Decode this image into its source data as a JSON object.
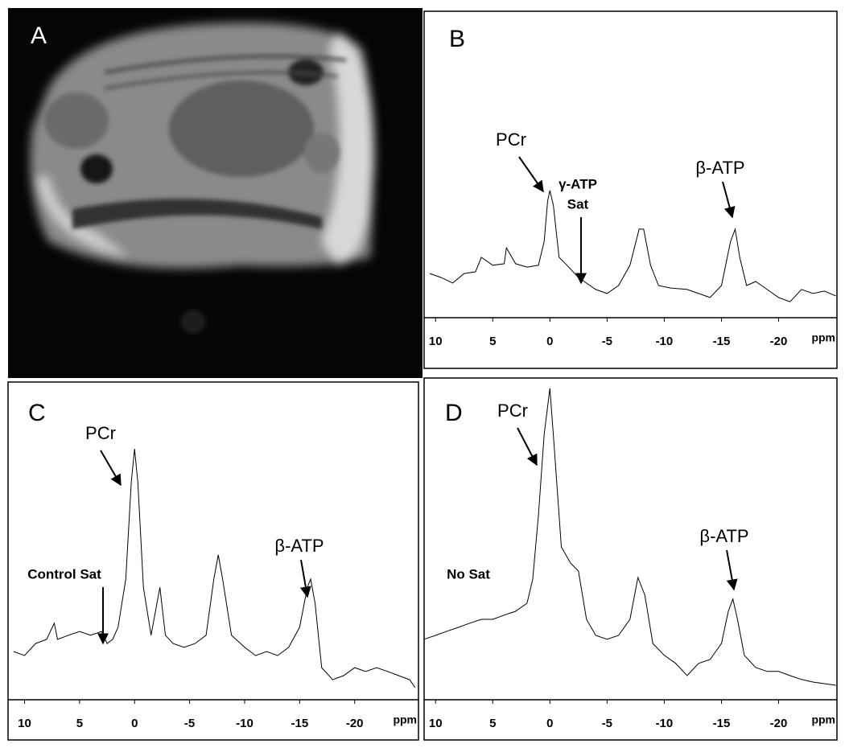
{
  "image_panel": {
    "label": "A"
  },
  "chart_data": [
    {
      "type": "line",
      "panel": "B",
      "color": "#000000",
      "x": [
        10.5,
        9.5,
        8.5,
        7.5,
        6.5,
        6,
        5,
        4,
        3.8,
        3,
        2,
        1,
        0.5,
        0.2,
        0,
        -0.3,
        -0.8,
        -1.5,
        -2.5,
        -3,
        -4,
        -5,
        -6,
        -7,
        -7.8,
        -8.2,
        -8.8,
        -9.5,
        -10.5,
        -12,
        -13,
        -14,
        -15,
        -15.8,
        -16.2,
        -16.6,
        -17.2,
        -18,
        -19,
        -20,
        -21,
        -22,
        -23,
        -24,
        -25
      ],
      "values": [
        14.4,
        13.1,
        11.3,
        14.4,
        15.0,
        19.7,
        17.1,
        17.6,
        22.8,
        17.6,
        16.5,
        17.1,
        24.9,
        38.1,
        41.5,
        36.7,
        19.7,
        17.1,
        13.1,
        11.8,
        9.2,
        7.9,
        10.5,
        17.1,
        28.9,
        28.9,
        17.1,
        10.5,
        9.7,
        9.2,
        7.9,
        6.6,
        10.5,
        24.9,
        28.9,
        19.7,
        10.5,
        11.8,
        9.2,
        6.6,
        5.2,
        9.2,
        7.9,
        8.7,
        7.1
      ],
      "xlim": [
        11,
        -25.1
      ],
      "ylim": [
        0,
        100
      ],
      "xticks": [
        10,
        5,
        0,
        -5,
        -10,
        -15,
        -20
      ],
      "xlabel": "ppm",
      "annotations": [
        "PCr",
        "γ-ATP",
        "Sat",
        "β-ATP"
      ]
    },
    {
      "type": "line",
      "panel": "C",
      "color": "#000000",
      "x": [
        11,
        10,
        9,
        8,
        7.3,
        7,
        6,
        5,
        4,
        3,
        2.5,
        2,
        1.5,
        0.8,
        0.3,
        0,
        -0.3,
        -0.8,
        -1.5,
        -2.3,
        -2.8,
        -3.5,
        -4.5,
        -5.5,
        -6.5,
        -7.2,
        -7.6,
        -8,
        -8.8,
        -10,
        -11,
        -12,
        -13,
        -14,
        -15,
        -15.7,
        -16,
        -16.4,
        -17,
        -18,
        -19,
        -20,
        -21,
        -22,
        -23,
        -24,
        -25,
        -25.5
      ],
      "values": [
        15.2,
        13.9,
        17.7,
        19.0,
        24.1,
        19.0,
        20.3,
        21.5,
        20.3,
        21.5,
        17.7,
        19.0,
        22.8,
        38.0,
        68.4,
        79.0,
        68.4,
        35.4,
        20.3,
        35.4,
        20.3,
        17.7,
        16.5,
        17.7,
        20.3,
        38.0,
        45.6,
        38.0,
        20.3,
        16.5,
        13.9,
        15.2,
        13.9,
        16.5,
        22.8,
        35.4,
        38.0,
        30.4,
        10.1,
        6.3,
        7.6,
        10.1,
        8.9,
        10.1,
        8.9,
        7.6,
        6.3,
        3.8
      ],
      "xlim": [
        11.5,
        -25.8
      ],
      "ylim": [
        0,
        100
      ],
      "xticks": [
        10,
        5,
        0,
        -5,
        -10,
        -15,
        -20
      ],
      "xlabel": "ppm",
      "annotations": [
        "PCr",
        "β-ATP",
        "Control Sat"
      ]
    },
    {
      "type": "line",
      "panel": "D",
      "color": "#000000",
      "x": [
        11,
        10,
        9,
        8,
        7,
        6,
        5,
        4,
        3,
        2,
        1.5,
        1,
        0.5,
        0,
        -0.4,
        -1,
        -1.8,
        -2.5,
        -3.2,
        -4,
        -5,
        -6,
        -7,
        -7.7,
        -8.3,
        -9,
        -10,
        -11,
        -12,
        -13,
        -14,
        -15,
        -15.6,
        -16,
        -16.4,
        -17,
        -18,
        -19,
        -20,
        -21,
        -22,
        -23,
        -24,
        -25
      ],
      "values": [
        18.8,
        20.0,
        21.3,
        22.5,
        23.8,
        25.0,
        25.0,
        26.3,
        27.5,
        30.0,
        37.5,
        57.5,
        82.5,
        96.8,
        77.5,
        47.5,
        42.5,
        40.0,
        25.0,
        20.0,
        18.8,
        20.0,
        25.0,
        38.0,
        32.5,
        17.5,
        13.8,
        11.3,
        7.5,
        11.3,
        12.5,
        17.5,
        27.5,
        31.3,
        25.0,
        13.8,
        10.0,
        8.8,
        8.8,
        7.5,
        6.3,
        5.5,
        5.0,
        4.5
      ],
      "xlim": [
        11,
        -25.1
      ],
      "ylim": [
        0,
        100
      ],
      "xticks": [
        10,
        5,
        0,
        -5,
        -10,
        -15,
        -20
      ],
      "xlabel": "ppm",
      "annotations": [
        "PCr",
        "β-ATP",
        "No Sat"
      ]
    }
  ]
}
